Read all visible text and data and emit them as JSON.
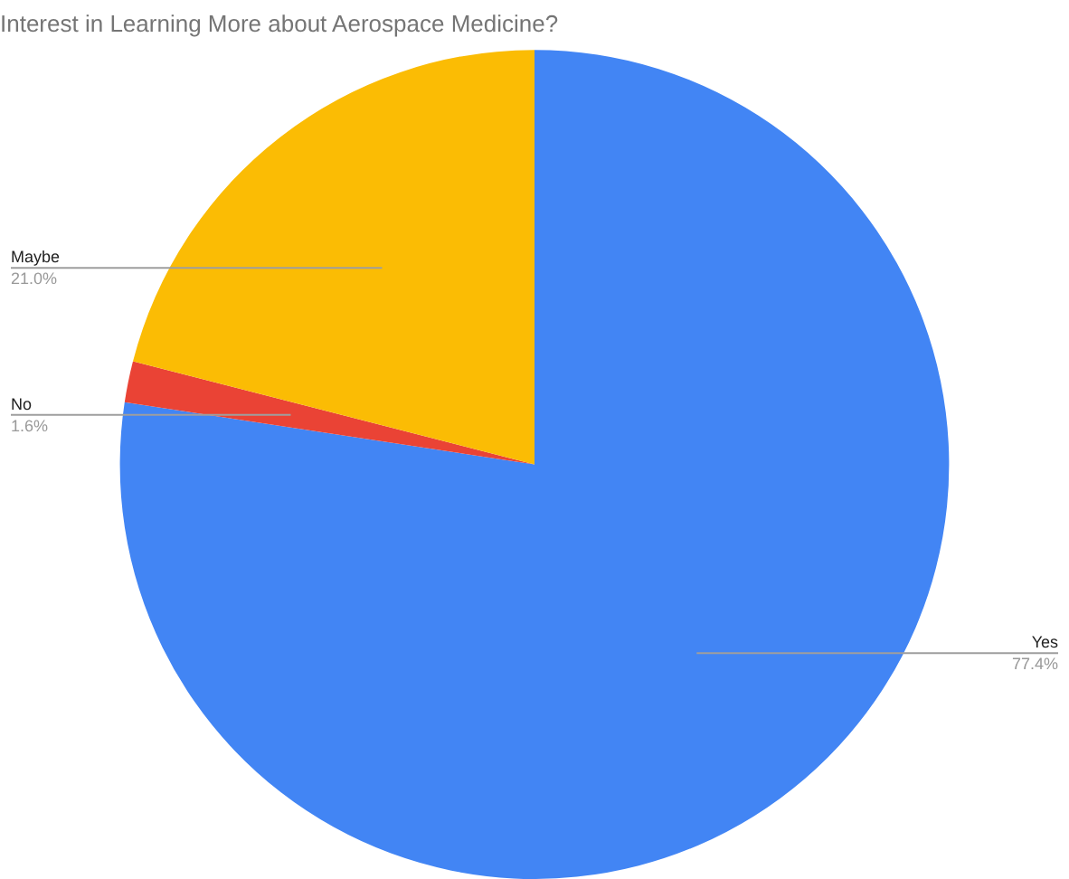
{
  "chart_data": {
    "type": "pie",
    "title": "Interest in Learning More about Aerospace Medicine?",
    "categories": [
      "Yes",
      "No",
      "Maybe"
    ],
    "values": [
      77.4,
      1.6,
      21.0
    ],
    "value_labels": [
      "77.4%",
      "1.6%",
      "21.0%"
    ],
    "colors": [
      "#4285f4",
      "#ea4335",
      "#fbbc04"
    ],
    "legend": false
  }
}
